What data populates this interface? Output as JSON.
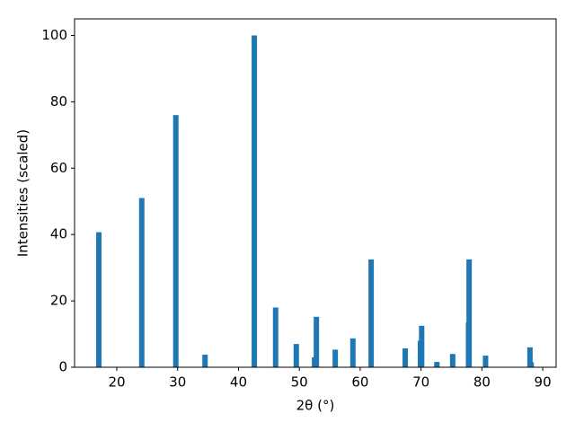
{
  "chart_data": {
    "type": "bar",
    "xlabel": "2θ (°)",
    "ylabel": "Intensities (scaled)",
    "color": "#1f77b4",
    "x": [
      17.05,
      24.1,
      29.7,
      34.5,
      42.6,
      46.1,
      49.5,
      52.5,
      52.8,
      55.9,
      58.8,
      61.8,
      67.4,
      69.9,
      70.1,
      72.6,
      75.2,
      77.8,
      77.9,
      80.6,
      87.9,
      88.1
    ],
    "values": [
      40.7,
      51,
      76,
      3.8,
      100,
      18,
      7,
      3,
      15.2,
      5.3,
      8.7,
      32.5,
      5.7,
      8,
      12.5,
      1.6,
      4,
      13.5,
      32.5,
      3.5,
      6,
      1.5
    ],
    "xlim": [
      13.06,
      92.2
    ],
    "ylim": [
      0,
      105
    ],
    "xticks": [
      20,
      30,
      40,
      50,
      60,
      70,
      80,
      90
    ],
    "yticks": [
      0,
      20,
      40,
      60,
      80,
      100
    ]
  }
}
